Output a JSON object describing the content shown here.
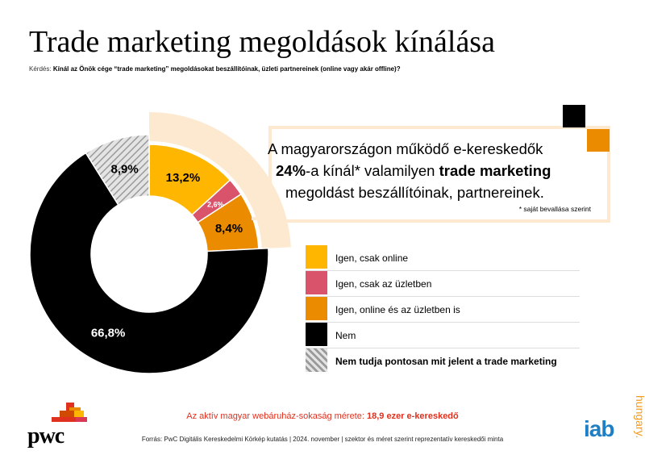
{
  "header": {
    "title": "Trade marketing megoldások kínálása",
    "question_label": "Kérdés:",
    "question_text": "Kínál az Önök cége “trade marketing” megoldásokat beszállítóinak, üzleti partnereinek (online vagy akár offline)?"
  },
  "callout": {
    "line1": "A magyarországon működő e-kereskedők",
    "line2_bold_a": "24%",
    "line2_mid": "-a kínál* valamilyen ",
    "line2_bold_b": "trade marketing",
    "line3": "megoldást beszállítóinak, partnereinek.",
    "note": "* saját bevallása szerint"
  },
  "chart_data": {
    "type": "pie",
    "variant": "donut",
    "slices": [
      {
        "label": "Igen, csak online",
        "value": 13.2,
        "display": "13,2%",
        "color": "#FFB600"
      },
      {
        "label": "Igen, csak az üzletben",
        "value": 2.6,
        "display": "2,6%",
        "color": "#D9546A"
      },
      {
        "label": "Igen, online és az üzletben is",
        "value": 8.4,
        "display": "8,4%",
        "color": "#EB8C00"
      },
      {
        "label": "Nem",
        "value": 66.8,
        "display": "66,8%",
        "color": "#000000"
      },
      {
        "label": "Nem tudja pontosan mit jelent a trade marketing",
        "value": 8.9,
        "display": "8,9%",
        "color": "hatched-gray"
      }
    ],
    "legend_placement": "right"
  },
  "legend": {
    "items": [
      {
        "label": "Igen, csak online",
        "color": "#FFB600"
      },
      {
        "label": "Igen, csak az üzletben",
        "color": "#D9546A"
      },
      {
        "label": "Igen, online és az üzletben is",
        "color": "#EB8C00"
      },
      {
        "label": "Nem",
        "color": "#000000"
      },
      {
        "label": "Nem tudja pontosan mit jelent a trade marketing",
        "color": "hatched-gray"
      }
    ]
  },
  "footer": {
    "note_text": "Az aktív magyar webáruház-sokaság mérete: ",
    "note_bold": "18,9 ezer e-kereskedő",
    "source": "Forrás: PwC Digitális Kereskedelmi Körkép kutatás | 2024. november | szektor és méret szerint reprezentatív kereskedői minta"
  },
  "logos": {
    "pwc": "pwc",
    "iab": "iab",
    "iab_sub": "hungary."
  }
}
